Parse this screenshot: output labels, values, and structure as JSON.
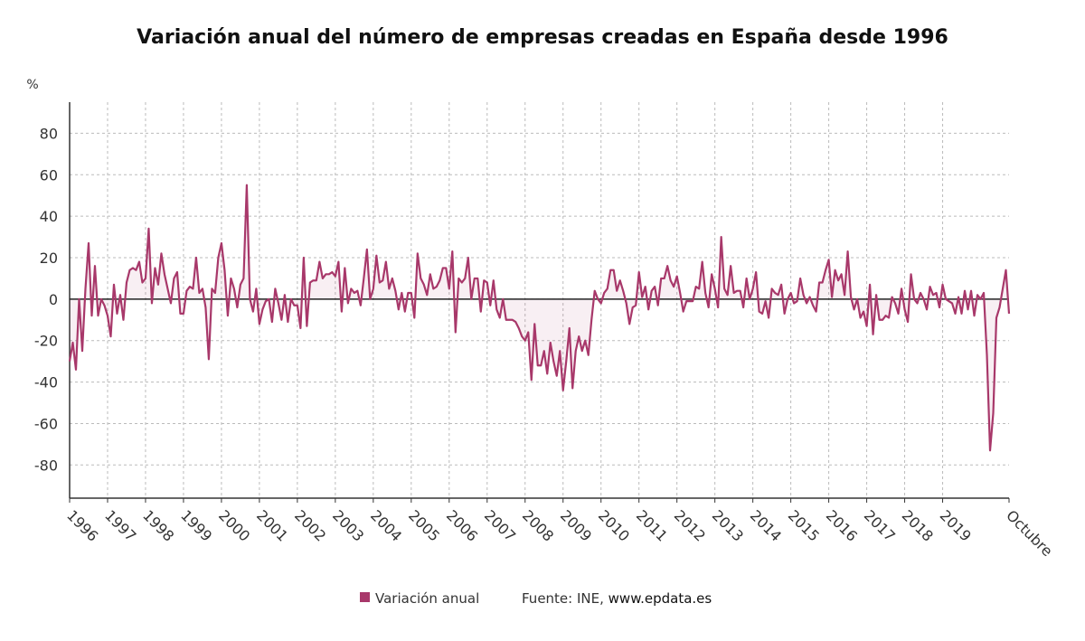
{
  "chart_data": {
    "type": "line",
    "title": "Variación anual del número de empresas creadas en España desde 1996",
    "y_label": "%",
    "source": "Fuente: INE,",
    "source_link": "www.epdata.es",
    "categories": [
      "1996",
      null,
      null,
      null,
      null,
      null,
      null,
      null,
      null,
      null,
      null,
      null,
      "1997",
      null,
      null,
      null,
      null,
      null,
      null,
      null,
      null,
      null,
      null,
      null,
      "1998",
      null,
      null,
      null,
      null,
      null,
      null,
      null,
      null,
      null,
      null,
      null,
      "1999",
      null,
      null,
      null,
      null,
      null,
      null,
      null,
      null,
      null,
      null,
      null,
      "2000",
      null,
      null,
      null,
      null,
      null,
      null,
      null,
      null,
      null,
      null,
      null,
      "2001",
      null,
      null,
      null,
      null,
      null,
      null,
      null,
      null,
      null,
      null,
      null,
      "2002",
      null,
      null,
      null,
      null,
      null,
      null,
      null,
      null,
      null,
      null,
      null,
      "2003",
      null,
      null,
      null,
      null,
      null,
      null,
      null,
      null,
      null,
      null,
      null,
      "2004",
      null,
      null,
      null,
      null,
      null,
      null,
      null,
      null,
      null,
      null,
      null,
      "2005",
      null,
      null,
      null,
      null,
      null,
      null,
      null,
      null,
      null,
      null,
      null,
      "2006",
      null,
      null,
      null,
      null,
      null,
      null,
      null,
      null,
      null,
      null,
      null,
      "2007",
      null,
      null,
      null,
      null,
      null,
      null,
      null,
      null,
      null,
      null,
      null,
      "2008",
      null,
      null,
      null,
      null,
      null,
      null,
      null,
      null,
      null,
      null,
      null,
      "2009",
      null,
      null,
      null,
      null,
      null,
      null,
      null,
      null,
      null,
      null,
      null,
      "2010",
      null,
      null,
      null,
      null,
      null,
      null,
      null,
      null,
      null,
      null,
      null,
      "2011",
      null,
      null,
      null,
      null,
      null,
      null,
      null,
      null,
      null,
      null,
      null,
      "2012",
      null,
      null,
      null,
      null,
      null,
      null,
      null,
      null,
      null,
      null,
      null,
      "2013",
      null,
      null,
      null,
      null,
      null,
      null,
      null,
      null,
      null,
      null,
      null,
      "2014",
      null,
      null,
      null,
      null,
      null,
      null,
      null,
      null,
      null,
      null,
      null,
      "2015",
      null,
      null,
      null,
      null,
      null,
      null,
      null,
      null,
      null,
      null,
      null,
      "2016",
      null,
      null,
      null,
      null,
      null,
      null,
      null,
      null,
      null,
      null,
      null,
      "2017",
      null,
      null,
      null,
      null,
      null,
      null,
      null,
      null,
      null,
      null,
      null,
      "2018",
      null,
      null,
      null,
      null,
      null,
      null,
      null,
      null,
      null,
      null,
      null,
      "2019",
      null,
      null,
      null,
      null,
      null,
      null,
      null,
      null,
      null,
      null,
      null,
      null,
      null,
      null,
      null,
      null,
      null,
      null,
      null,
      null,
      "Octubre"
    ],
    "series": [
      {
        "name": "Variación anual",
        "color": "#a8386a",
        "values": [
          -30,
          -21,
          -34,
          0,
          -25,
          5,
          27,
          -8,
          16,
          -8,
          0,
          -3,
          -8,
          -18,
          7,
          -7,
          2,
          -10,
          8,
          14,
          15,
          14,
          18,
          8,
          10,
          34,
          -2,
          15,
          7,
          22,
          12,
          5,
          -2,
          10,
          13,
          -7,
          -7,
          4,
          6,
          5,
          20,
          3,
          5,
          -4,
          -29,
          5,
          3,
          20,
          27,
          14,
          -8,
          10,
          5,
          -4,
          7,
          10,
          55,
          0,
          -6,
          5,
          -12,
          -5,
          -1,
          0,
          -11,
          5,
          -2,
          -10,
          2,
          -11,
          0,
          -3,
          -3,
          -14,
          20,
          -13,
          8,
          9,
          9,
          18,
          10,
          12,
          12,
          13,
          11,
          18,
          -6,
          15,
          -2,
          5,
          3,
          4,
          -3,
          10,
          24,
          0,
          5,
          21,
          8,
          9,
          18,
          5,
          10,
          4,
          -5,
          3,
          -6,
          3,
          3,
          -9,
          22,
          10,
          7,
          2,
          12,
          5,
          6,
          9,
          15,
          15,
          5,
          23,
          -16,
          10,
          8,
          10,
          20,
          0,
          10,
          10,
          -6,
          9,
          8,
          -3,
          9,
          -5,
          -9,
          0,
          -10,
          -10,
          -10,
          -11,
          -14,
          -18,
          -20,
          -16,
          -39,
          -12,
          -32,
          -32,
          -25,
          -36,
          -21,
          -30,
          -37,
          -25,
          -44,
          -30,
          -14,
          -43,
          -25,
          -18,
          -25,
          -20,
          -27,
          -10,
          4,
          0,
          -2,
          3,
          5,
          14,
          14,
          4,
          9,
          4,
          -2,
          -12,
          -4,
          -3,
          13,
          1,
          6,
          -5,
          4,
          6,
          -3,
          10,
          10,
          16,
          9,
          6,
          11,
          3,
          -6,
          -1,
          -1,
          -1,
          6,
          5,
          18,
          3,
          -4,
          12,
          5,
          -4,
          30,
          5,
          2,
          16,
          3,
          4,
          4,
          -4,
          10,
          0,
          5,
          13,
          -6,
          -7,
          -1,
          -9,
          5,
          3,
          2,
          7,
          -7,
          0,
          3,
          -2,
          -1,
          10,
          2,
          -2,
          1,
          -3,
          -6,
          8,
          8,
          14,
          19,
          1,
          14,
          9,
          12,
          2,
          23,
          1,
          -5,
          0,
          -9,
          -6,
          -13,
          7,
          -17,
          2,
          -10,
          -10,
          -8,
          -9,
          1,
          -2,
          -7,
          5,
          -5,
          -11,
          12,
          0,
          -2,
          3,
          0,
          -5,
          6,
          2,
          3,
          -4,
          7,
          0,
          -1,
          -2,
          -7,
          1,
          -7,
          4,
          -5,
          4,
          -8,
          2,
          0,
          3,
          -27,
          -73,
          -55,
          -9,
          -4,
          5,
          14,
          -7
        ]
      }
    ],
    "ylim": [
      -96,
      95
    ],
    "yticks": [
      -80,
      -60,
      -40,
      -20,
      0,
      20,
      40,
      60,
      80
    ],
    "grid": true
  }
}
